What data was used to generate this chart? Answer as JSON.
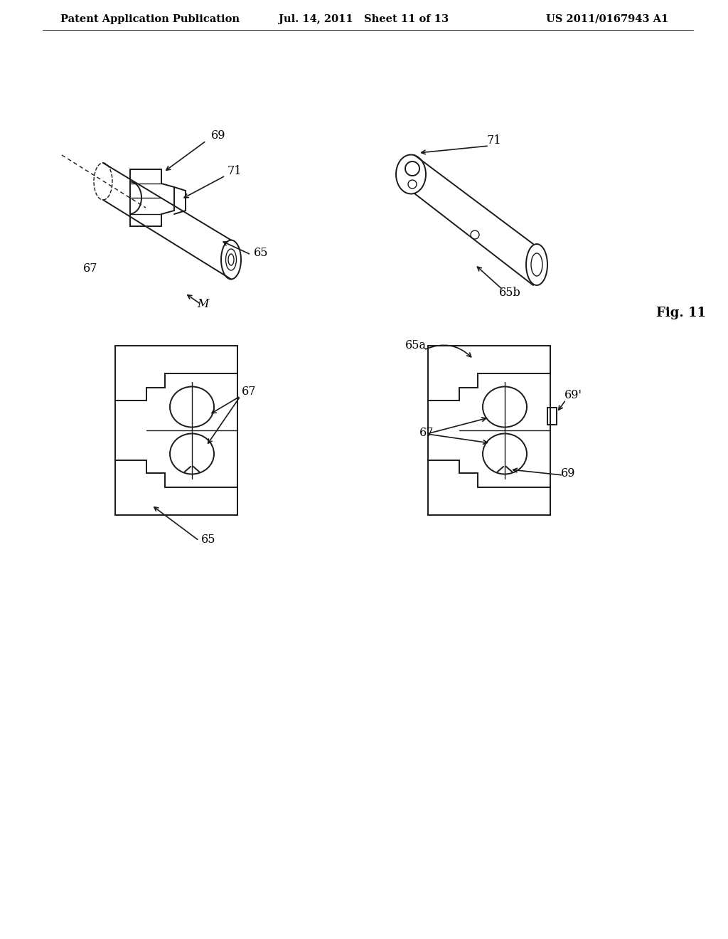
{
  "title_left": "Patent Application Publication",
  "title_center": "Jul. 14, 2011   Sheet 11 of 13",
  "title_right": "US 2011/0167943 A1",
  "fig_label": "Fig. 11",
  "bg_color": "#ffffff",
  "line_color": "#1a1a1a",
  "header_fontsize": 10.5,
  "label_fontsize": 11.5,
  "fig_label_fontsize": 13
}
